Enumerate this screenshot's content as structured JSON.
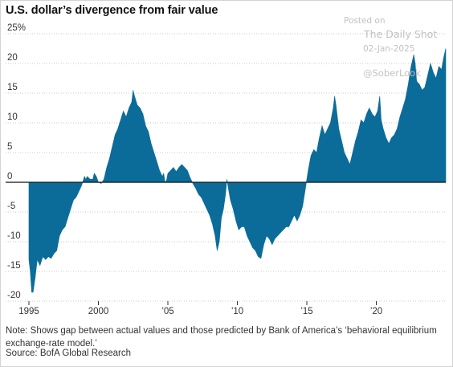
{
  "title": "U.S. dollar’s divergence from fair value",
  "note": "Note: Shows gap between actual values and those predicted by Bank of America’s ‘behavioral equilibrium exchange-rate model.’",
  "source": "Source: BofA Global Research",
  "watermark": {
    "posted": "Posted on",
    "brand": "The Daily Shot",
    "date": "02-Jan-2025",
    "handle": "@SoberLook"
  },
  "colors": {
    "area": "#0b6c99",
    "grid": "#c9c9c9",
    "zero_line": "#111111"
  },
  "chart_data": {
    "type": "area",
    "title": "U.S. dollar’s divergence from fair value",
    "xlabel": "",
    "ylabel": "",
    "y_unit": "%",
    "xlim": [
      1995.0,
      2025.0
    ],
    "ylim": [
      -20,
      25
    ],
    "y_ticks": [
      25,
      20,
      15,
      10,
      5,
      0,
      -5,
      -10,
      -15,
      -20
    ],
    "y_tick_labels": [
      "25%",
      "20",
      "15",
      "10",
      "5",
      "0",
      "-5",
      "-10",
      "-15",
      "-20"
    ],
    "x_ticks": [
      1995,
      2000,
      2005,
      2010,
      2015,
      2020
    ],
    "x_tick_labels": [
      "1995",
      "2000",
      "’05",
      "’10",
      "’15",
      "’20"
    ],
    "grid": true,
    "series": [
      {
        "values": [
          [
            1995.0,
            -13.0
          ],
          [
            1995.1,
            -15.0
          ],
          [
            1995.2,
            -18.5
          ],
          [
            1995.3,
            -18.5
          ],
          [
            1995.45,
            -16.0
          ],
          [
            1995.6,
            -13.0
          ],
          [
            1995.8,
            -14.0
          ],
          [
            1996.0,
            -12.5
          ],
          [
            1996.2,
            -13.0
          ],
          [
            1996.4,
            -12.5
          ],
          [
            1996.6,
            -12.8
          ],
          [
            1996.8,
            -12.0
          ],
          [
            1997.0,
            -11.5
          ],
          [
            1997.2,
            -9.0
          ],
          [
            1997.4,
            -8.0
          ],
          [
            1997.6,
            -7.5
          ],
          [
            1997.8,
            -6.0
          ],
          [
            1998.0,
            -4.5
          ],
          [
            1998.2,
            -3.0
          ],
          [
            1998.4,
            -2.5
          ],
          [
            1998.6,
            -1.5
          ],
          [
            1998.8,
            -0.5
          ],
          [
            1999.0,
            1.0
          ],
          [
            1999.1,
            0.5
          ],
          [
            1999.2,
            1.0
          ],
          [
            1999.4,
            0.5
          ],
          [
            1999.6,
            0.5
          ],
          [
            1999.7,
            1.5
          ],
          [
            1999.85,
            1.0
          ],
          [
            2000.0,
            0.0
          ],
          [
            2000.2,
            -0.2
          ],
          [
            2000.4,
            0.5
          ],
          [
            2000.6,
            2.5
          ],
          [
            2000.8,
            4.0
          ],
          [
            2001.0,
            6.0
          ],
          [
            2001.2,
            8.0
          ],
          [
            2001.4,
            9.0
          ],
          [
            2001.6,
            10.5
          ],
          [
            2001.8,
            12.0
          ],
          [
            2002.0,
            11.0
          ],
          [
            2002.2,
            12.5
          ],
          [
            2002.4,
            13.5
          ],
          [
            2002.5,
            15.5
          ],
          [
            2002.6,
            14.5
          ],
          [
            2002.8,
            13.0
          ],
          [
            2003.0,
            12.5
          ],
          [
            2003.2,
            11.5
          ],
          [
            2003.4,
            9.5
          ],
          [
            2003.6,
            8.5
          ],
          [
            2003.8,
            6.5
          ],
          [
            2004.0,
            5.0
          ],
          [
            2004.2,
            3.5
          ],
          [
            2004.4,
            2.0
          ],
          [
            2004.6,
            1.0
          ],
          [
            2004.7,
            1.5
          ],
          [
            2004.8,
            0.0
          ],
          [
            2004.9,
            0.3
          ],
          [
            2005.0,
            1.5
          ],
          [
            2005.2,
            2.0
          ],
          [
            2005.4,
            2.5
          ],
          [
            2005.6,
            1.8
          ],
          [
            2005.8,
            2.5
          ],
          [
            2006.0,
            3.0
          ],
          [
            2006.2,
            2.5
          ],
          [
            2006.4,
            2.0
          ],
          [
            2006.6,
            0.8
          ],
          [
            2006.8,
            -0.2
          ],
          [
            2007.0,
            -1.0
          ],
          [
            2007.2,
            -2.0
          ],
          [
            2007.4,
            -2.5
          ],
          [
            2007.6,
            -3.5
          ],
          [
            2007.8,
            -4.5
          ],
          [
            2008.0,
            -5.5
          ],
          [
            2008.2,
            -7.0
          ],
          [
            2008.4,
            -9.0
          ],
          [
            2008.55,
            -11.5
          ],
          [
            2008.7,
            -10.0
          ],
          [
            2008.85,
            -6.0
          ],
          [
            2009.0,
            -4.5
          ],
          [
            2009.15,
            -2.0
          ],
          [
            2009.25,
            0.5
          ],
          [
            2009.35,
            -1.0
          ],
          [
            2009.5,
            -3.0
          ],
          [
            2009.7,
            -4.5
          ],
          [
            2009.9,
            -6.5
          ],
          [
            2010.1,
            -8.0
          ],
          [
            2010.3,
            -7.5
          ],
          [
            2010.5,
            -7.5
          ],
          [
            2010.7,
            -9.0
          ],
          [
            2010.9,
            -10.0
          ],
          [
            2011.1,
            -11.0
          ],
          [
            2011.3,
            -11.5
          ],
          [
            2011.5,
            -12.5
          ],
          [
            2011.7,
            -12.8
          ],
          [
            2011.9,
            -10.5
          ],
          [
            2012.1,
            -9.0
          ],
          [
            2012.3,
            -9.5
          ],
          [
            2012.5,
            -10.5
          ],
          [
            2012.7,
            -9.5
          ],
          [
            2012.9,
            -9.0
          ],
          [
            2013.1,
            -8.5
          ],
          [
            2013.3,
            -8.0
          ],
          [
            2013.5,
            -7.5
          ],
          [
            2013.7,
            -7.5
          ],
          [
            2013.9,
            -6.5
          ],
          [
            2014.1,
            -5.5
          ],
          [
            2014.3,
            -6.5
          ],
          [
            2014.5,
            -5.5
          ],
          [
            2014.7,
            -4.0
          ],
          [
            2014.9,
            -1.0
          ],
          [
            2015.1,
            2.0
          ],
          [
            2015.3,
            4.5
          ],
          [
            2015.5,
            5.5
          ],
          [
            2015.7,
            5.0
          ],
          [
            2015.9,
            7.5
          ],
          [
            2016.1,
            9.5
          ],
          [
            2016.3,
            8.0
          ],
          [
            2016.5,
            9.0
          ],
          [
            2016.7,
            10.0
          ],
          [
            2016.9,
            12.5
          ],
          [
            2017.0,
            14.5
          ],
          [
            2017.1,
            13.0
          ],
          [
            2017.3,
            9.0
          ],
          [
            2017.5,
            7.0
          ],
          [
            2017.7,
            5.0
          ],
          [
            2017.9,
            4.0
          ],
          [
            2018.1,
            3.0
          ],
          [
            2018.3,
            5.0
          ],
          [
            2018.5,
            7.0
          ],
          [
            2018.7,
            8.5
          ],
          [
            2018.9,
            10.5
          ],
          [
            2019.1,
            10.0
          ],
          [
            2019.3,
            11.5
          ],
          [
            2019.5,
            12.5
          ],
          [
            2019.7,
            11.5
          ],
          [
            2019.9,
            11.0
          ],
          [
            2020.1,
            12.0
          ],
          [
            2020.25,
            14.5
          ],
          [
            2020.35,
            10.5
          ],
          [
            2020.5,
            9.0
          ],
          [
            2020.7,
            7.5
          ],
          [
            2020.9,
            6.5
          ],
          [
            2021.1,
            7.5
          ],
          [
            2021.3,
            8.0
          ],
          [
            2021.5,
            9.0
          ],
          [
            2021.7,
            11.0
          ],
          [
            2021.9,
            12.5
          ],
          [
            2022.1,
            14.0
          ],
          [
            2022.3,
            16.5
          ],
          [
            2022.5,
            19.5
          ],
          [
            2022.7,
            21.5
          ],
          [
            2022.8,
            20.0
          ],
          [
            2022.9,
            17.0
          ],
          [
            2023.1,
            16.5
          ],
          [
            2023.3,
            15.5
          ],
          [
            2023.5,
            16.0
          ],
          [
            2023.7,
            18.0
          ],
          [
            2023.9,
            20.0
          ],
          [
            2024.1,
            18.5
          ],
          [
            2024.3,
            17.5
          ],
          [
            2024.5,
            19.5
          ],
          [
            2024.7,
            19.0
          ],
          [
            2024.85,
            21.0
          ],
          [
            2025.0,
            22.5
          ]
        ]
      }
    ]
  }
}
